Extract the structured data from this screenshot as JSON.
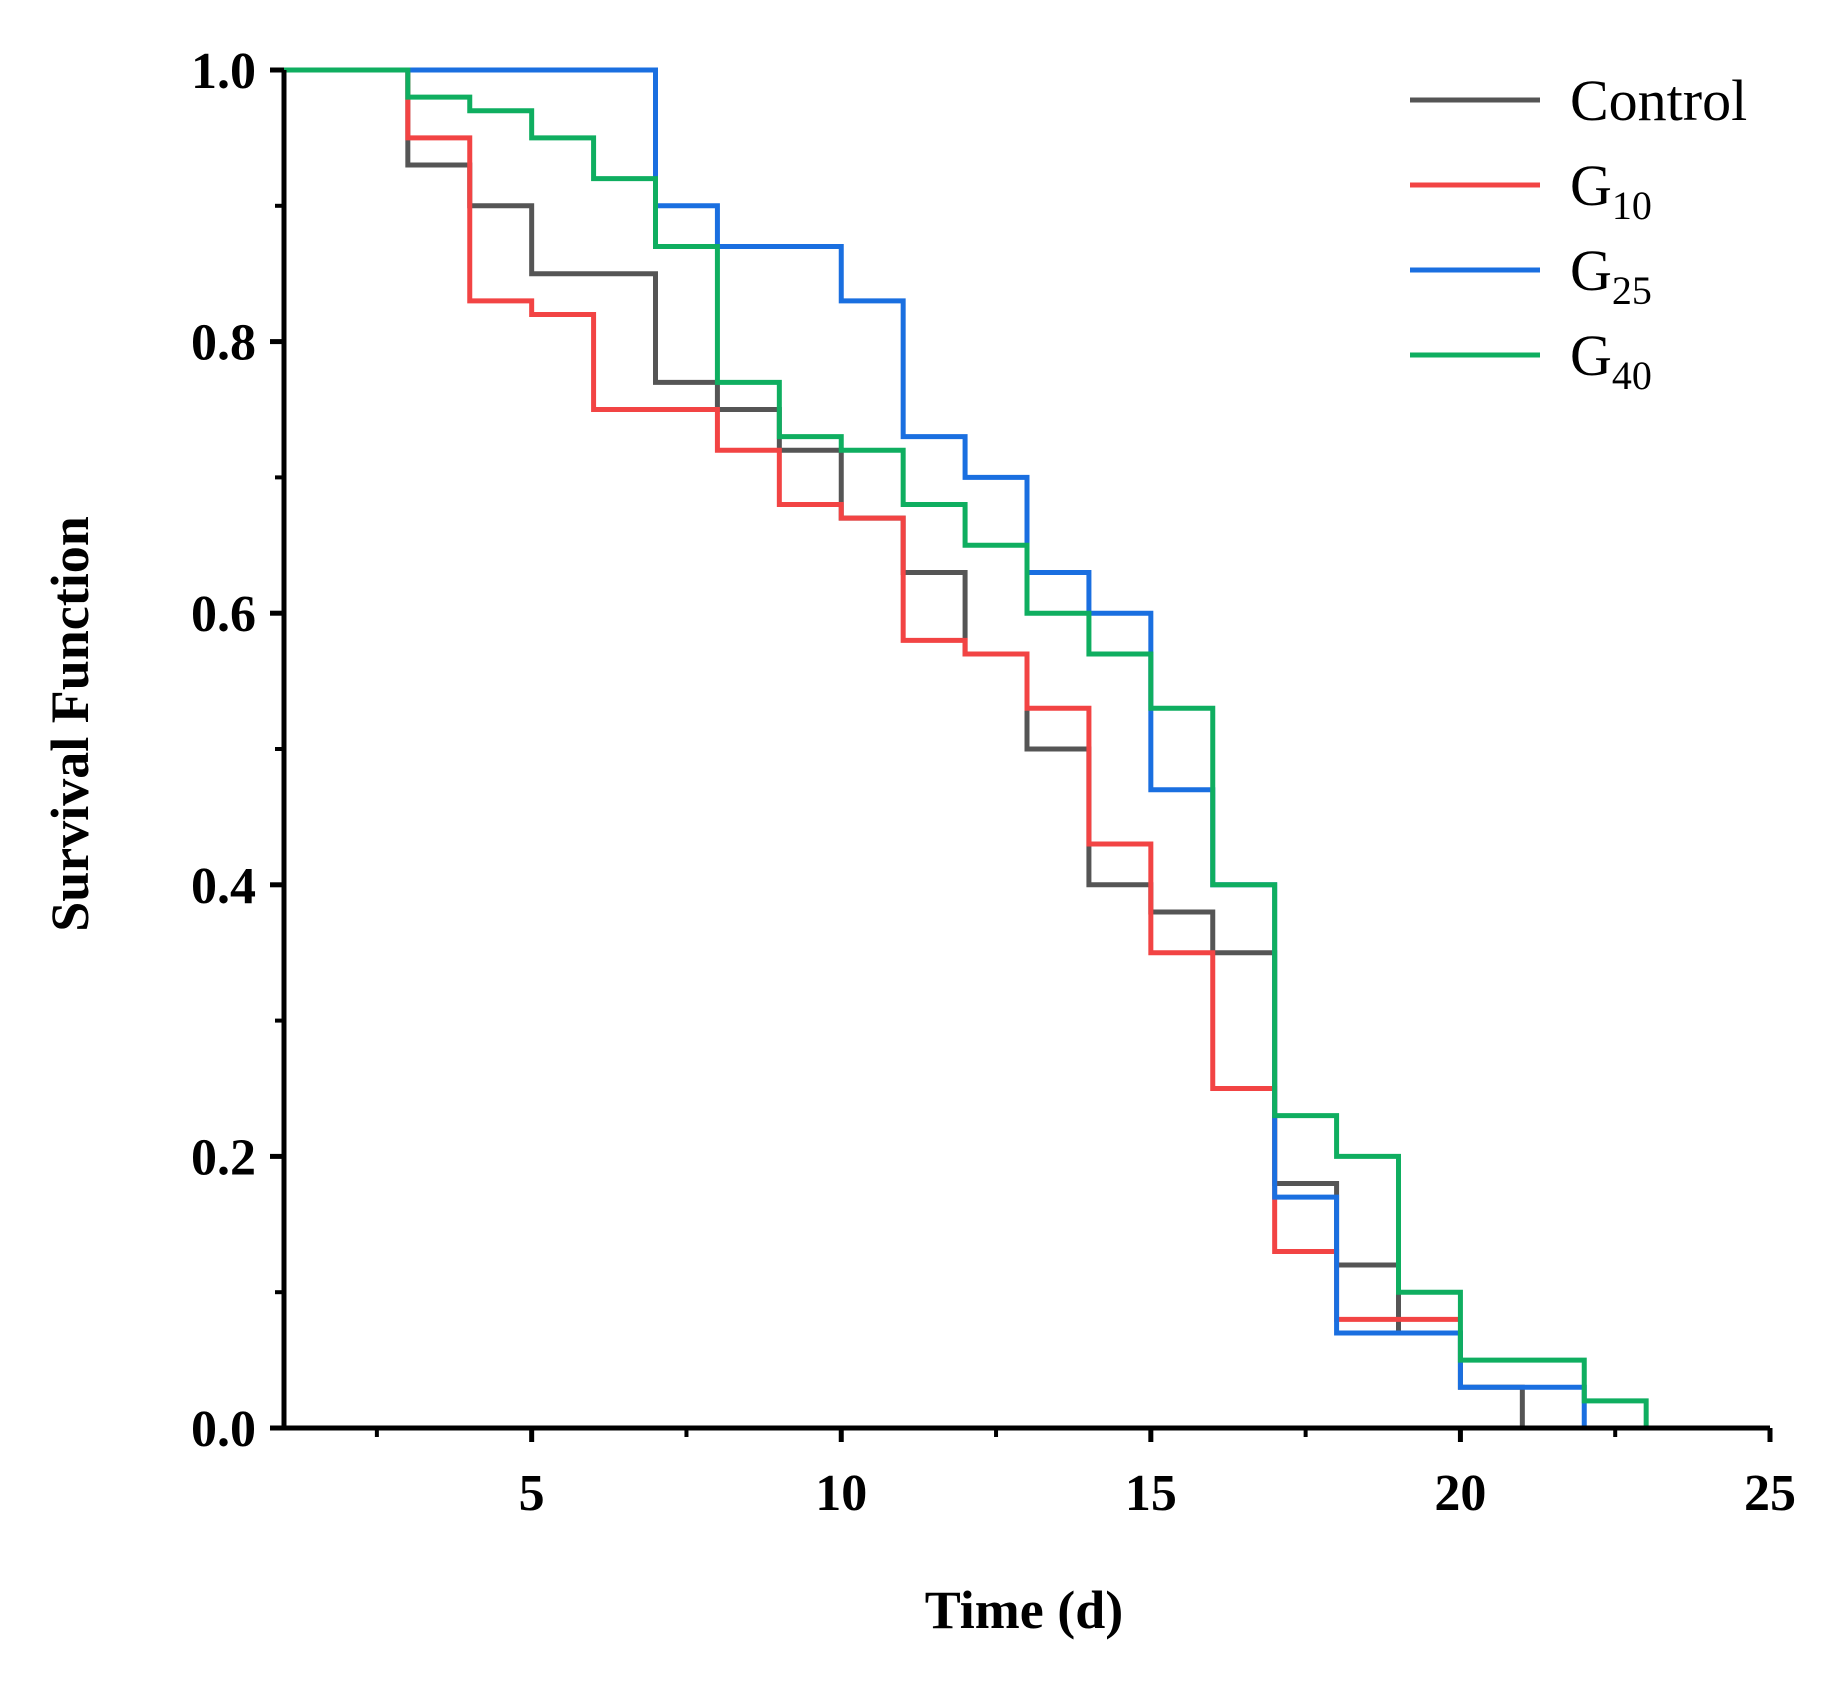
{
  "chart_data": {
    "type": "line",
    "step": true,
    "title": "",
    "xlabel": "Time (d)",
    "ylabel": "Survival Function",
    "xlim": [
      1,
      25
    ],
    "ylim": [
      0,
      1
    ],
    "x_ticks": [
      5,
      10,
      15,
      20,
      25
    ],
    "y_ticks": [
      0.0,
      0.2,
      0.4,
      0.6,
      0.8,
      1.0
    ],
    "x_tick_labels": [
      "5",
      "10",
      "15",
      "20",
      "25"
    ],
    "y_tick_labels": [
      "0.0",
      "0.2",
      "0.4",
      "0.6",
      "0.8",
      "1.0"
    ],
    "grid": false,
    "legend_position": "top-right",
    "series": [
      {
        "name": "Control",
        "label_main": "Control",
        "label_sub": "",
        "color": "#555555",
        "x": [
          1,
          3,
          4,
          5,
          7,
          8,
          9,
          10,
          11,
          12,
          13,
          14,
          15,
          16,
          17,
          18,
          19,
          20,
          21
        ],
        "y": [
          1.0,
          0.93,
          0.9,
          0.85,
          0.77,
          0.75,
          0.72,
          0.67,
          0.63,
          0.57,
          0.5,
          0.4,
          0.38,
          0.35,
          0.18,
          0.12,
          0.07,
          0.03,
          0.0
        ]
      },
      {
        "name": "G10",
        "label_main": "G",
        "label_sub": "10",
        "color": "#f24444",
        "x": [
          1,
          3,
          4,
          5,
          6,
          8,
          9,
          10,
          11,
          12,
          13,
          14,
          15,
          16,
          17,
          18,
          20
        ],
        "y": [
          1.0,
          0.95,
          0.83,
          0.82,
          0.75,
          0.72,
          0.68,
          0.67,
          0.58,
          0.57,
          0.53,
          0.43,
          0.35,
          0.25,
          0.13,
          0.08,
          0.08
        ]
      },
      {
        "name": "G25",
        "label_main": "G",
        "label_sub": "25",
        "color": "#1a6fe0",
        "x": [
          1,
          7,
          8,
          10,
          11,
          12,
          13,
          14,
          15,
          16,
          17,
          18,
          20,
          22
        ],
        "y": [
          1.0,
          0.9,
          0.87,
          0.83,
          0.73,
          0.7,
          0.63,
          0.6,
          0.47,
          0.4,
          0.17,
          0.07,
          0.03,
          0.0
        ]
      },
      {
        "name": "G40",
        "label_main": "G",
        "label_sub": "40",
        "color": "#0fae60",
        "x": [
          1,
          3,
          4,
          5,
          6,
          7,
          8,
          9,
          10,
          11,
          12,
          13,
          14,
          15,
          16,
          17,
          18,
          19,
          20,
          22,
          23
        ],
        "y": [
          1.0,
          0.98,
          0.97,
          0.95,
          0.92,
          0.87,
          0.77,
          0.73,
          0.72,
          0.68,
          0.65,
          0.6,
          0.57,
          0.53,
          0.4,
          0.23,
          0.2,
          0.1,
          0.05,
          0.02,
          0.0
        ]
      }
    ]
  }
}
